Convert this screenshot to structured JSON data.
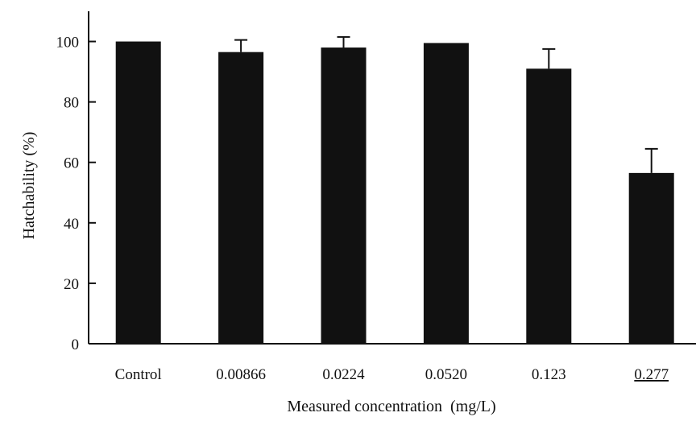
{
  "chart_data": {
    "type": "bar",
    "title": "",
    "xlabel": "Measured concentration  (mg/L)",
    "ylabel": "Hatchability (%)",
    "categories": [
      "Control",
      "0.00866",
      "0.0224",
      "0.0520",
      "0.123",
      "0.277"
    ],
    "underlined_categories": [
      "0.277"
    ],
    "values": [
      100,
      96.5,
      98,
      99.5,
      91,
      56.5
    ],
    "error_upper": [
      0,
      4,
      3.5,
      0,
      6.5,
      8
    ],
    "ylim": [
      0,
      110
    ],
    "yticks": [
      0,
      20,
      40,
      60,
      80,
      100
    ],
    "grid": false,
    "bar_color": "#111111",
    "background": "#ffffff"
  }
}
